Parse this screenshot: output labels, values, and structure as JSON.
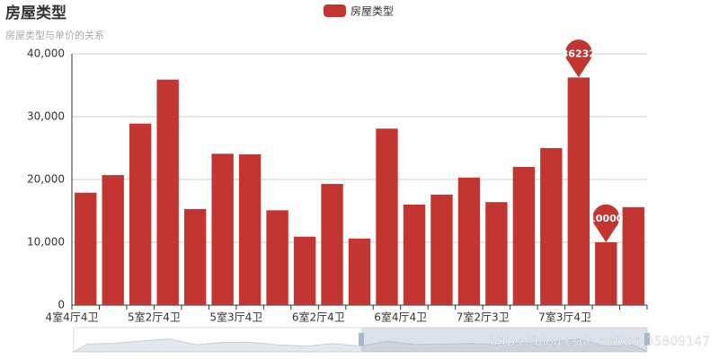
{
  "chart_data": {
    "type": "bar",
    "title": "房屋类型",
    "subtitle": "房屋类型与单价的关系",
    "categories": [
      "4室4厅4卫",
      null,
      null,
      "5室2厅4卫",
      null,
      null,
      "5室3厅4卫",
      null,
      null,
      "6室2厅4卫",
      null,
      null,
      "6室4厅4卫",
      null,
      null,
      "7室2厅3卫",
      null,
      null,
      "7室3厅4卫",
      null,
      null
    ],
    "series": [
      {
        "name": "房屋类型",
        "color": "#c23531",
        "values": [
          17900,
          20700,
          28900,
          35900,
          15300,
          24100,
          24000,
          15100,
          10900,
          19300,
          10600,
          28100,
          16000,
          17600,
          20300,
          16400,
          22000,
          25000,
          36232,
          10000,
          15600
        ]
      }
    ],
    "ylim": [
      0,
      40000
    ],
    "yticks": [
      0,
      {
        "value": 10000,
        "label": "10,000"
      },
      {
        "value": 20000,
        "label": "20,000"
      },
      {
        "value": 30000,
        "label": "30,000"
      },
      {
        "value": 40000,
        "label": "40,000"
      }
    ],
    "grid": true,
    "legend": "top",
    "mark_points": [
      "max",
      "min"
    ],
    "watermark": "https://blog.csdn.net/qq_35809147"
  }
}
